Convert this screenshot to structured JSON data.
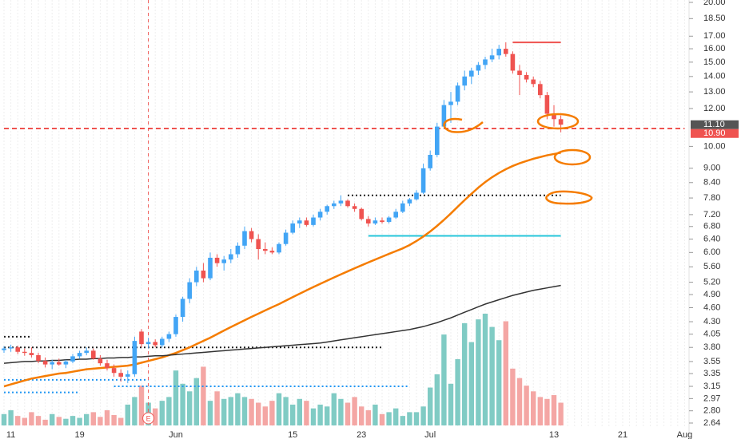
{
  "chart_data": {
    "type": "candlestick",
    "log_scale": true,
    "ylim": [
      2.64,
      20
    ],
    "yticks": [
      2.64,
      {
        "value": 2.8,
        "label": "2.80"
      },
      2.97,
      3.15,
      3.35,
      3.55,
      {
        "value": 3.8,
        "label": "3.80"
      },
      4.05,
      {
        "value": 4.3,
        "label": "4.30"
      },
      {
        "value": 4.6,
        "label": "4.60"
      },
      {
        "value": 4.9,
        "label": "4.90"
      },
      {
        "value": 5.2,
        "label": "5.20"
      },
      {
        "value": 5.6,
        "label": "5.60"
      },
      {
        "value": 6,
        "label": "6.00"
      },
      {
        "value": 6.4,
        "label": "6.40"
      },
      {
        "value": 6.8,
        "label": "6.80"
      },
      {
        "value": 7.2,
        "label": "7.20"
      },
      {
        "value": 7.8,
        "label": "7.80"
      },
      {
        "value": 8.4,
        "label": "8.40"
      },
      {
        "value": 9,
        "label": "9.00"
      },
      {
        "value": 10,
        "label": "10.00"
      },
      {
        "value": 12,
        "label": "12.00"
      },
      {
        "value": 13,
        "label": "13.00"
      },
      {
        "value": 14,
        "label": "14.00"
      },
      {
        "value": 15,
        "label": "15.00"
      },
      {
        "value": 16,
        "label": "16.00"
      },
      {
        "value": 17,
        "label": "17.00"
      },
      {
        "value": 18.5,
        "label": "18.50"
      },
      {
        "value": 20,
        "label": "20.00"
      }
    ],
    "categories": [
      null,
      "11",
      null,
      null,
      null,
      null,
      null,
      null,
      null,
      null,
      null,
      "19",
      null,
      null,
      null,
      null,
      null,
      null,
      null,
      null,
      null,
      null,
      null,
      null,
      null,
      "Jun",
      null,
      null,
      null,
      null,
      null,
      null,
      null,
      null,
      null,
      null,
      null,
      null,
      null,
      null,
      null,
      null,
      "15",
      null,
      null,
      null,
      null,
      null,
      null,
      null,
      null,
      null,
      "23",
      null,
      null,
      null,
      null,
      null,
      null,
      null,
      null,
      null,
      "Jul",
      null,
      null,
      null,
      null,
      null,
      null,
      null,
      null,
      null,
      null,
      null,
      null,
      null,
      null,
      null,
      null,
      null,
      "13",
      null,
      null,
      null,
      null,
      null,
      null,
      null,
      null,
      null,
      "21",
      null,
      null,
      null,
      null,
      null,
      null,
      null,
      null,
      "Aug"
    ],
    "up_color": "#42a5f5",
    "down_color": "#ef5350",
    "volume_up_color": "#80cbc4",
    "volume_down_color": "#f4a6a4",
    "open": [
      3.75,
      3.78,
      3.8,
      3.72,
      3.7,
      3.66,
      3.56,
      3.5,
      3.54,
      3.5,
      3.55,
      3.64,
      3.7,
      3.74,
      3.6,
      3.52,
      3.44,
      3.36,
      3.3,
      3.34,
      4.1,
      3.86,
      3.9,
      3.84,
      3.96,
      4.05,
      4.4,
      4.8,
      5.2,
      5.5,
      5.3,
      5.85,
      5.7,
      5.8,
      5.95,
      6.2,
      6.65,
      6.4,
      6.1,
      6.05,
      6.0,
      6.25,
      6.6,
      6.9,
      7.0,
      6.85,
      7.1,
      7.3,
      7.5,
      7.6,
      7.7,
      7.5,
      7.4,
      7.05,
      6.9,
      7.0,
      6.95,
      7.1,
      7.3,
      7.6,
      7.75,
      8.0,
      9.0,
      9.6,
      11.0,
      12.2,
      12.4,
      13.4,
      14.0,
      14.4,
      14.8,
      15.2,
      15.5,
      16.0,
      15.6,
      14.4,
      14.1,
      13.8,
      13.5,
      12.8,
      11.7,
      11.4,
      null,
      null,
      null,
      null,
      null,
      null,
      null,
      null,
      null,
      null,
      null,
      null,
      null,
      null,
      null,
      null,
      null,
      null
    ],
    "high": [
      3.82,
      3.85,
      3.83,
      3.78,
      3.8,
      3.7,
      3.62,
      3.58,
      3.6,
      3.58,
      3.68,
      3.74,
      3.8,
      3.78,
      3.66,
      3.58,
      3.5,
      3.42,
      3.4,
      4.0,
      4.15,
      3.98,
      3.95,
      4.0,
      4.1,
      4.45,
      4.85,
      5.3,
      5.6,
      5.7,
      6.0,
      5.95,
      5.9,
      6.1,
      6.3,
      6.8,
      6.75,
      6.55,
      6.3,
      6.15,
      6.3,
      6.7,
      7.0,
      7.1,
      7.1,
      7.2,
      7.4,
      7.55,
      7.7,
      7.9,
      7.75,
      7.6,
      7.45,
      7.15,
      7.1,
      7.1,
      7.15,
      7.4,
      7.7,
      7.8,
      8.1,
      9.2,
      9.8,
      11.2,
      12.5,
      13.0,
      13.6,
      14.4,
      14.6,
      15.0,
      15.4,
      16.0,
      16.3,
      16.5,
      15.8,
      14.8,
      14.3,
      14.0,
      13.7,
      13.0,
      12.2,
      11.6,
      null,
      null,
      null,
      null,
      null,
      null,
      null,
      null,
      null,
      null,
      null,
      null,
      null,
      null,
      null,
      null,
      null,
      null
    ],
    "low": [
      3.7,
      3.72,
      3.68,
      3.65,
      3.62,
      3.52,
      3.45,
      3.42,
      3.48,
      3.44,
      3.52,
      3.6,
      3.66,
      3.58,
      3.48,
      3.4,
      3.3,
      3.22,
      3.2,
      3.3,
      3.8,
      3.78,
      3.8,
      3.8,
      3.9,
      4.0,
      4.3,
      4.7,
      5.1,
      5.2,
      5.25,
      5.6,
      5.5,
      5.7,
      5.85,
      6.1,
      6.3,
      5.8,
      5.95,
      5.95,
      5.95,
      6.2,
      6.55,
      6.75,
      6.8,
      6.8,
      7.0,
      7.2,
      7.4,
      7.5,
      7.45,
      7.3,
      7.0,
      6.8,
      6.85,
      6.9,
      6.9,
      7.05,
      7.25,
      7.5,
      7.7,
      7.95,
      8.9,
      9.5,
      10.9,
      11.2,
      12.2,
      13.1,
      13.5,
      14.1,
      14.5,
      15.0,
      15.2,
      15.4,
      14.2,
      12.8,
      13.6,
      13.3,
      12.6,
      11.4,
      11.0,
      10.7,
      null,
      null,
      null,
      null,
      null,
      null,
      null,
      null,
      null,
      null,
      null,
      null,
      null,
      null,
      null,
      null,
      null,
      null
    ],
    "close": [
      3.78,
      3.8,
      3.72,
      3.7,
      3.66,
      3.56,
      3.5,
      3.54,
      3.5,
      3.55,
      3.64,
      3.7,
      3.74,
      3.6,
      3.52,
      3.44,
      3.36,
      3.3,
      3.34,
      3.92,
      3.86,
      3.9,
      3.84,
      3.96,
      4.05,
      4.4,
      4.8,
      5.2,
      5.5,
      5.3,
      5.85,
      5.7,
      5.8,
      5.95,
      6.2,
      6.65,
      6.4,
      6.1,
      6.05,
      6.0,
      6.25,
      6.6,
      6.9,
      7.0,
      6.85,
      7.1,
      7.3,
      7.5,
      7.6,
      7.7,
      7.5,
      7.4,
      7.05,
      6.9,
      7.0,
      6.95,
      7.1,
      7.3,
      7.6,
      7.75,
      8.0,
      9.0,
      9.6,
      11.0,
      12.2,
      12.4,
      13.4,
      14.0,
      14.4,
      14.8,
      15.2,
      15.5,
      16.0,
      15.6,
      14.4,
      14.1,
      13.8,
      13.5,
      12.8,
      11.7,
      11.4,
      11.1,
      null,
      null,
      null,
      null,
      null,
      null,
      null,
      null,
      null,
      null,
      null,
      null,
      null,
      null,
      null,
      null,
      null,
      null
    ],
    "volume": [
      12,
      16,
      10,
      8,
      14,
      10,
      6,
      12,
      9,
      7,
      10,
      8,
      12,
      14,
      9,
      16,
      11,
      8,
      22,
      30,
      42,
      24,
      18,
      26,
      30,
      58,
      44,
      36,
      50,
      62,
      26,
      36,
      28,
      30,
      34,
      30,
      28,
      24,
      20,
      26,
      34,
      30,
      22,
      28,
      26,
      18,
      22,
      20,
      34,
      28,
      24,
      30,
      20,
      16,
      22,
      12,
      14,
      18,
      10,
      14,
      14,
      20,
      40,
      54,
      96,
      44,
      70,
      108,
      88,
      112,
      118,
      104,
      90,
      110,
      60,
      50,
      42,
      36,
      30,
      28,
      32,
      24,
      null,
      null,
      null,
      null,
      null,
      null,
      null,
      null,
      null,
      null,
      null,
      null,
      null,
      null,
      null,
      null,
      null,
      null
    ],
    "series": [
      {
        "color": "#f57c00",
        "values": [
          3.15,
          3.18,
          3.21,
          3.24,
          3.27,
          3.29,
          3.31,
          3.33,
          3.35,
          3.36,
          3.38,
          3.4,
          3.42,
          3.43,
          3.44,
          3.45,
          3.46,
          3.47,
          3.48,
          3.5,
          3.53,
          3.56,
          3.59,
          3.62,
          3.66,
          3.7,
          3.75,
          3.8,
          3.86,
          3.92,
          3.98,
          4.05,
          4.12,
          4.19,
          4.26,
          4.33,
          4.4,
          4.47,
          4.54,
          4.61,
          4.68,
          4.76,
          4.84,
          4.92,
          5.0,
          5.08,
          5.16,
          5.24,
          5.32,
          5.4,
          5.48,
          5.56,
          5.64,
          5.72,
          5.8,
          5.88,
          5.96,
          6.04,
          6.12,
          6.22,
          6.34,
          6.48,
          6.64,
          6.82,
          7.02,
          7.24,
          7.48,
          7.72,
          7.96,
          8.2,
          8.42,
          8.62,
          8.8,
          8.96,
          9.1,
          9.22,
          9.32,
          9.42,
          9.5,
          9.58,
          9.64,
          9.7,
          null,
          null,
          null,
          null,
          null,
          null,
          null,
          null,
          null,
          null,
          null,
          null,
          null,
          null,
          null,
          null,
          null,
          null
        ]
      },
      {
        "color": "#333333",
        "values": [
          3.52,
          3.53,
          3.54,
          3.55,
          3.55,
          3.56,
          3.56,
          3.57,
          3.57,
          3.58,
          3.58,
          3.59,
          3.59,
          3.6,
          3.6,
          3.61,
          3.61,
          3.62,
          3.62,
          3.63,
          3.63,
          3.64,
          3.65,
          3.65,
          3.66,
          3.67,
          3.68,
          3.69,
          3.7,
          3.71,
          3.72,
          3.73,
          3.74,
          3.75,
          3.76,
          3.77,
          3.78,
          3.79,
          3.8,
          3.81,
          3.82,
          3.83,
          3.84,
          3.85,
          3.86,
          3.87,
          3.88,
          3.9,
          3.92,
          3.94,
          3.96,
          3.98,
          4.0,
          4.02,
          4.04,
          4.06,
          4.08,
          4.1,
          4.12,
          4.14,
          4.17,
          4.2,
          4.24,
          4.28,
          4.33,
          4.38,
          4.44,
          4.5,
          4.56,
          4.62,
          4.68,
          4.73,
          4.78,
          4.83,
          4.88,
          4.92,
          4.96,
          5.0,
          5.03,
          5.06,
          5.09,
          5.12,
          null,
          null,
          null,
          null,
          null,
          null,
          null,
          null,
          null,
          null,
          null,
          null,
          null,
          null,
          null,
          null,
          null,
          null
        ]
      }
    ],
    "levels": [
      {
        "price": 10.9,
        "from": 0,
        "to": 99,
        "color": "#ef5350",
        "style": "dashed"
      },
      {
        "price": 3.8,
        "from": 0,
        "to": 55,
        "color": "#222222",
        "style": "dotted"
      },
      {
        "price": 4.0,
        "from": 0,
        "to": 4,
        "color": "#222222",
        "style": "dotted"
      },
      {
        "price": 7.9,
        "from": 50,
        "to": 81,
        "color": "#222222",
        "style": "dotted"
      },
      {
        "price": 3.25,
        "from": 0,
        "to": 21,
        "color": "#2196f3",
        "style": "dotted"
      },
      {
        "price": 3.15,
        "from": 16,
        "to": 59,
        "color": "#2196f3",
        "style": "dotted"
      },
      {
        "price": 3.06,
        "from": 0,
        "to": 11,
        "color": "#2196f3",
        "style": "dotted"
      },
      {
        "price": 6.5,
        "from": 53,
        "to": 81,
        "color": "#26c6da",
        "style": "solid"
      },
      {
        "price": 16.5,
        "from": 74,
        "to": 81,
        "color": "#ef5350",
        "style": "solid"
      }
    ],
    "price_tags": [
      {
        "value": 11.1,
        "label": "11.10",
        "color": "#555555"
      },
      {
        "value": 10.9,
        "label": "10.90",
        "color": "#ef5350"
      }
    ],
    "event_marker": {
      "index": 21,
      "label": "E"
    }
  }
}
